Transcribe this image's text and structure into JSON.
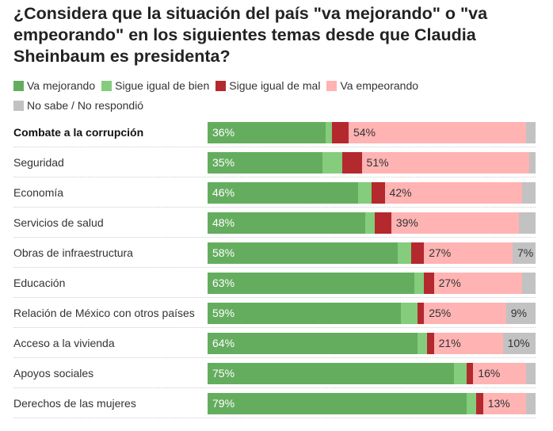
{
  "chart_data": {
    "type": "bar",
    "orientation": "horizontal",
    "stacked": true,
    "title": "¿Considera que la situación del país \"va mejorando\" o \"va empeorando\" en los siguientes temas desde que Claudia Sheinbaum es presidenta?",
    "legend_placement": "top",
    "categories": [
      "Combate a la corrupción",
      "Seguridad",
      "Economía",
      "Servicios de salud",
      "Obras de infraestructura",
      "Educación",
      "Relación de México con otros países",
      "Acceso a la vivienda",
      "Apoyos sociales",
      "Derechos de las mujeres"
    ],
    "series": [
      {
        "name": "Va mejorando",
        "color": "#64ad5f",
        "values": [
          36,
          35,
          46,
          48,
          58,
          63,
          59,
          64,
          75,
          79
        ],
        "labeled": [
          true,
          true,
          true,
          true,
          true,
          true,
          true,
          true,
          true,
          true
        ]
      },
      {
        "name": "Sigue igual de bien",
        "color": "#85cc7c",
        "values": [
          2,
          6,
          4,
          3,
          4,
          3,
          5,
          3,
          4,
          3
        ],
        "labeled": [
          false,
          false,
          false,
          false,
          false,
          false,
          false,
          false,
          false,
          false
        ]
      },
      {
        "name": "Sigue igual de mal",
        "color": "#b3292e",
        "values": [
          5,
          6,
          4,
          5,
          4,
          3,
          2,
          2,
          2,
          2
        ],
        "labeled": [
          false,
          false,
          false,
          false,
          false,
          false,
          false,
          false,
          false,
          false
        ]
      },
      {
        "name": "Va empeorando",
        "color": "#ffb3b3",
        "values": [
          54,
          51,
          42,
          39,
          27,
          27,
          25,
          21,
          16,
          13
        ],
        "labeled": [
          true,
          true,
          true,
          true,
          true,
          true,
          true,
          true,
          true,
          true
        ]
      },
      {
        "name": "No sabe / No respondió",
        "color": "#c2c2c2",
        "values": [
          3,
          2,
          4,
          5,
          7,
          4,
          9,
          10,
          3,
          3
        ],
        "labeled": [
          false,
          false,
          false,
          false,
          true,
          false,
          true,
          true,
          false,
          false
        ]
      }
    ],
    "highlighted_category": "Combate a la corrupción",
    "xlim": [
      0,
      100
    ]
  }
}
